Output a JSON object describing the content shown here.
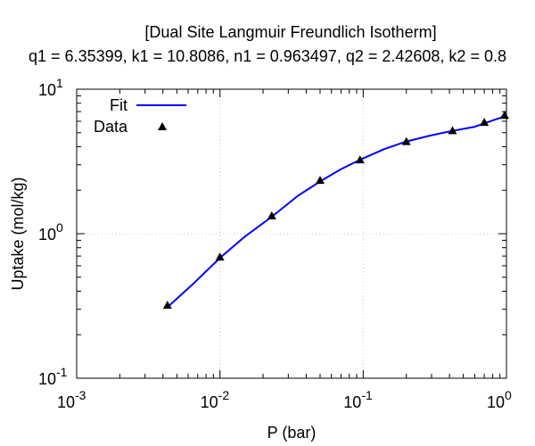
{
  "chart_data": {
    "type": "scatter",
    "title": "[Dual Site Langmuir Freundlich Isotherm]",
    "subtitle": "q1 = 6.35399, k1 = 10.8086, n1 = 0.963497, q2 = 2.42608, k2 = 0.8",
    "xlabel": "P (bar)",
    "ylabel": "Uptake (mol/kg)",
    "xscale": "log",
    "yscale": "log",
    "xlim": [
      0.001,
      1
    ],
    "ylim": [
      0.1,
      10
    ],
    "grid": true,
    "legend_position": "top-left",
    "x_ticks": [
      {
        "value": 0.001,
        "base": "10",
        "exp": "-3"
      },
      {
        "value": 0.01,
        "base": "10",
        "exp": "-2"
      },
      {
        "value": 0.1,
        "base": "10",
        "exp": "-1"
      },
      {
        "value": 1,
        "base": "10",
        "exp": "0"
      }
    ],
    "y_ticks": [
      {
        "value": 0.1,
        "base": "10",
        "exp": "-1"
      },
      {
        "value": 1,
        "base": "10",
        "exp": "0"
      },
      {
        "value": 10,
        "base": "10",
        "exp": "1"
      }
    ],
    "series": [
      {
        "name": "Fit",
        "kind": "line",
        "color": "#0000ff",
        "x": [
          0.0043,
          0.0065,
          0.01,
          0.015,
          0.023,
          0.035,
          0.05,
          0.07,
          0.095,
          0.14,
          0.2,
          0.3,
          0.42,
          0.6,
          0.7,
          0.85,
          1.0
        ],
        "y": [
          0.31,
          0.45,
          0.68,
          0.96,
          1.31,
          1.83,
          2.3,
          2.8,
          3.25,
          3.85,
          4.35,
          4.8,
          5.15,
          5.5,
          5.8,
          6.2,
          6.55
        ]
      },
      {
        "name": "Data",
        "kind": "scatter",
        "marker": "triangle",
        "color": "#000000",
        "x": [
          0.0043,
          0.01,
          0.023,
          0.05,
          0.095,
          0.2,
          0.42,
          0.7,
          0.97
        ],
        "y": [
          0.32,
          0.69,
          1.33,
          2.34,
          3.25,
          4.35,
          5.17,
          5.9,
          6.6
        ]
      }
    ]
  }
}
